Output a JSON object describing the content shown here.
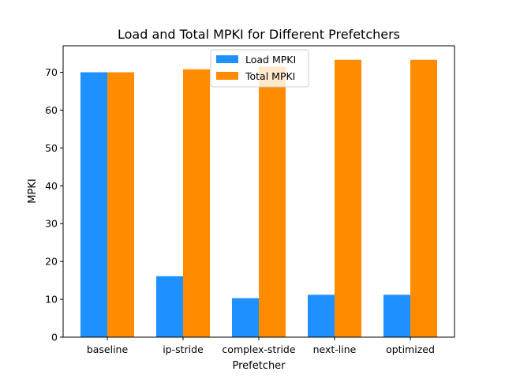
{
  "chart_data": {
    "type": "bar",
    "title": "Load and Total MPKI for Different Prefetchers",
    "xlabel": "Prefetcher",
    "ylabel": "MPKI",
    "categories": [
      "baseline",
      "ip-stride",
      "complex-stride",
      "next-line",
      "optimized"
    ],
    "series": [
      {
        "name": "Load MPKI",
        "color": "#1e90ff",
        "values": [
          70.0,
          16.1,
          10.3,
          11.2,
          11.2
        ]
      },
      {
        "name": "Total MPKI",
        "color": "#ff8c00",
        "values": [
          70.0,
          70.8,
          71.5,
          73.3,
          73.3
        ]
      }
    ],
    "ylim": [
      0,
      77
    ],
    "yticks": [
      0,
      10,
      20,
      30,
      40,
      50,
      60,
      70
    ],
    "grid": false,
    "legend": "upper-center"
  }
}
